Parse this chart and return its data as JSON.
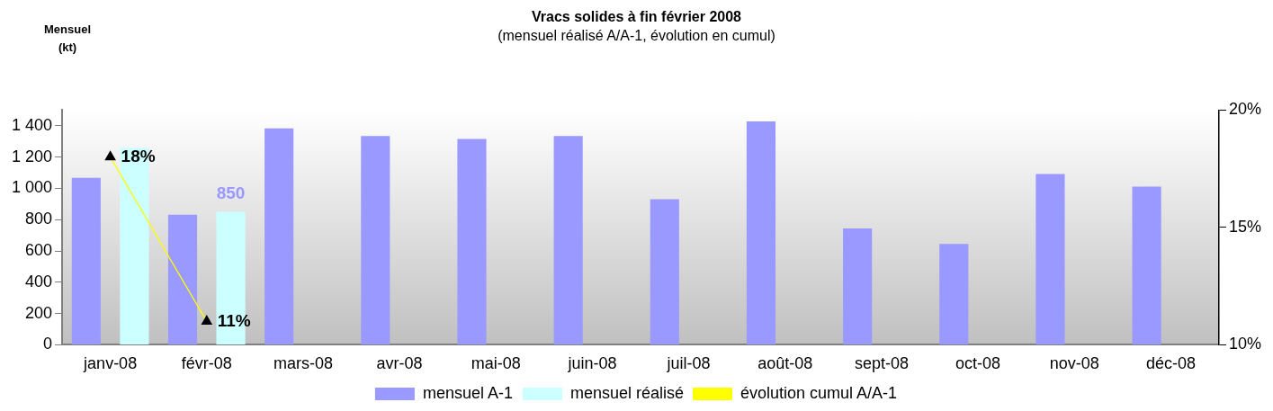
{
  "chart_data": {
    "type": "bar",
    "title": "Vracs solides à fin février 2008",
    "subtitle": "(mensuel réalisé A/A-1, évolution en cumul)",
    "ylabel": "Mensuel\n(kt)",
    "categories": [
      "janv-08",
      "févr-08",
      "mars-08",
      "avr-08",
      "mai-08",
      "juin-08",
      "juil-08",
      "août-08",
      "sept-08",
      "oct-08",
      "nov-08",
      "déc-08"
    ],
    "series": [
      {
        "name": "mensuel A-1",
        "color": "#9999ff",
        "values": [
          1067,
          831,
          1383,
          1334,
          1315,
          1334,
          930,
          1427,
          744,
          645,
          1092,
          1011
        ]
      },
      {
        "name": "mensuel réalisé",
        "color": "#ccffff",
        "values": [
          1259,
          850,
          null,
          null,
          null,
          null,
          null,
          null,
          null,
          null,
          null,
          null
        ],
        "value_labels": [
          null,
          "850",
          null,
          null,
          null,
          null,
          null,
          null,
          null,
          null,
          null,
          null
        ]
      },
      {
        "name": "évolution cumul A/A-1",
        "type": "line",
        "axis": "y2",
        "color": "#ffff00",
        "marker": "triangle",
        "values": [
          18,
          11,
          null,
          null,
          null,
          null,
          null,
          null,
          null,
          null,
          null,
          null
        ],
        "value_labels": [
          "18%",
          "11%",
          null,
          null,
          null,
          null,
          null,
          null,
          null,
          null,
          null,
          null
        ]
      }
    ],
    "ylim": [
      0,
      1500
    ],
    "yticks": [
      0,
      200,
      400,
      600,
      800,
      {
        "value": 1000,
        "label": "1 000"
      },
      {
        "value": 1200,
        "label": "1 200"
      },
      {
        "value": 1400,
        "label": "1 400"
      }
    ],
    "y2lim": [
      10,
      20
    ],
    "y2ticks": [
      {
        "value": 10,
        "label": "10%"
      },
      {
        "value": 15,
        "label": "15%"
      },
      {
        "value": 20,
        "label": "20%"
      }
    ],
    "grid": false,
    "legend": "bottom"
  }
}
